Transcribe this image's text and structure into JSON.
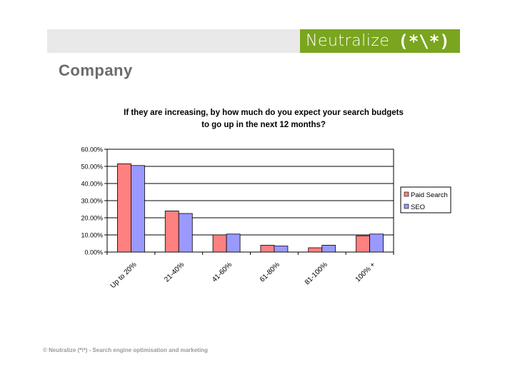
{
  "header": {
    "brand_name": "Neutralize",
    "brand_mark": "(*\\*)",
    "brand_color": "#7aa51e"
  },
  "section_title": "Company",
  "footer": {
    "text": "© Neutralize (*\\*)  - Search engine optimisation and marketing"
  },
  "chart_data": {
    "type": "bar",
    "title_line1": "If they are increasing, by how much do you expect your search budgets",
    "title_line2": "to go up in the next 12 months?",
    "categories": [
      "Up to 20%",
      "21-40%",
      "41-60%",
      "61-80%",
      "81-100%",
      "100% +"
    ],
    "series": [
      {
        "name": "Paid Search",
        "color": "#ff8080",
        "values": [
          0.515,
          0.24,
          0.1,
          0.04,
          0.025,
          0.095
        ]
      },
      {
        "name": "SEO",
        "color": "#9999ff",
        "values": [
          0.505,
          0.225,
          0.105,
          0.035,
          0.04,
          0.105
        ]
      }
    ],
    "ylim": [
      0,
      0.6
    ],
    "yticks": [
      "0.00%",
      "10.00%",
      "20.00%",
      "30.00%",
      "40.00%",
      "50.00%",
      "60.00%"
    ],
    "grid": true,
    "legend_position": "right"
  }
}
